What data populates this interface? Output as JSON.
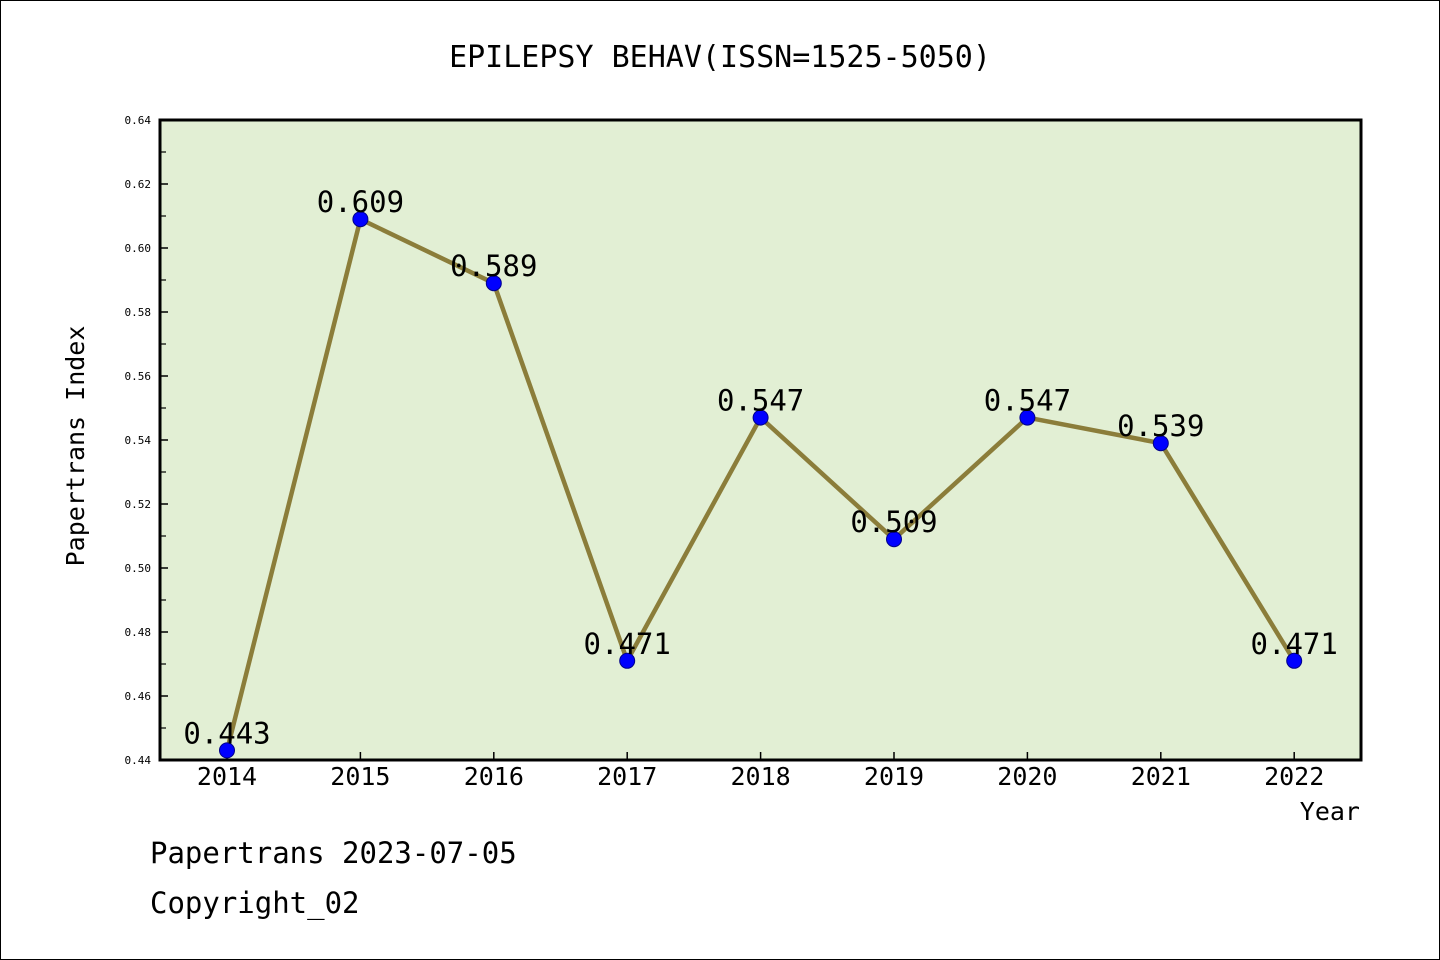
{
  "chart_data": {
    "type": "line",
    "title": "EPILEPSY BEHAV(ISSN=1525-5050)",
    "xlabel": "Year",
    "ylabel": "Papertrans Index",
    "categories": [
      "2014",
      "2015",
      "2016",
      "2017",
      "2018",
      "2019",
      "2020",
      "2021",
      "2022"
    ],
    "values": [
      0.443,
      0.609,
      0.589,
      0.471,
      0.547,
      0.509,
      0.547,
      0.539,
      0.471
    ],
    "data_labels": [
      "0.443",
      "0.609",
      "0.589",
      "0.471",
      "0.547",
      "0.509",
      "0.547",
      "0.539",
      "0.471"
    ],
    "ylim": [
      0.44,
      0.64
    ],
    "yticks": [
      "0.44",
      "0.46",
      "0.48",
      "0.50",
      "0.52",
      "0.54",
      "0.56",
      "0.58",
      "0.60",
      "0.62",
      "0.64"
    ],
    "grid": false,
    "colors": {
      "plot_background": "#e2efd4",
      "line": "#8b7d3a",
      "marker": "#0000ff"
    }
  },
  "footer": {
    "date_line": "Papertrans 2023-07-05",
    "copyright_line": "Copyright_02"
  }
}
